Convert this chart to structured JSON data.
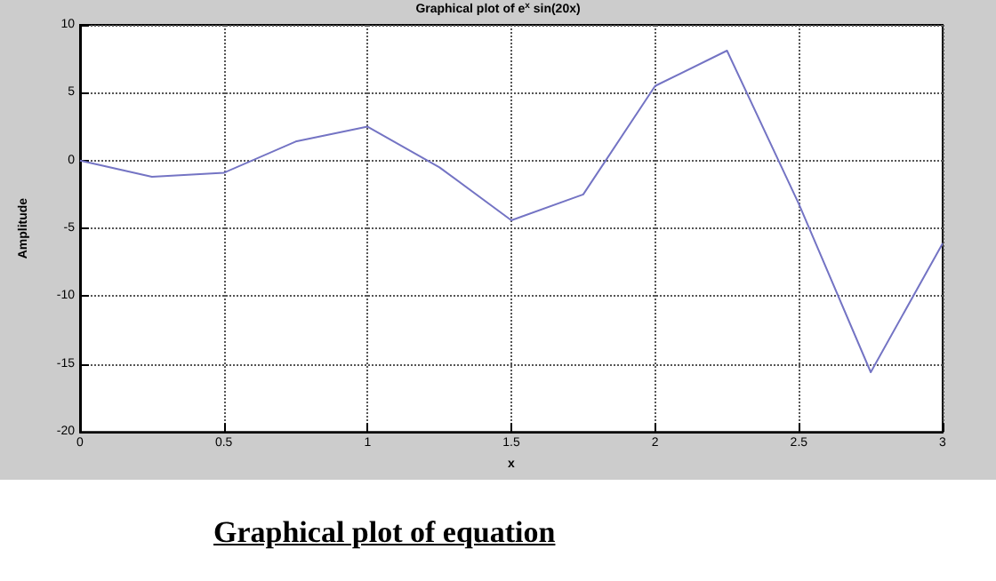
{
  "chart_data": {
    "type": "line",
    "title": "Graphical plot of e$^{x}$ sin(20x)",
    "xlabel": "x",
    "ylabel": "Amplitude",
    "x": [
      0,
      0.25,
      0.5,
      0.75,
      1,
      1.25,
      1.5,
      1.75,
      2,
      2.25,
      2.5,
      2.75,
      3
    ],
    "series": [
      {
        "color": "#7474c4",
        "values": [
          0,
          -1.2,
          -0.9,
          1.4,
          2.5,
          -0.5,
          -4.4,
          -2.5,
          5.5,
          8.1,
          -3.2,
          -15.6,
          -6.1
        ]
      }
    ],
    "xlim": [
      0,
      3
    ],
    "xticks": [
      0,
      0.5,
      1,
      1.5,
      2,
      2.5,
      3
    ],
    "ylim": [
      -20,
      10
    ],
    "yticks": [
      -20,
      -15,
      -10,
      -5,
      0,
      5,
      10
    ],
    "grid": true,
    "marker": "none",
    "line_style": "solid",
    "annotations": [
      "Graphical plot of equation"
    ]
  }
}
